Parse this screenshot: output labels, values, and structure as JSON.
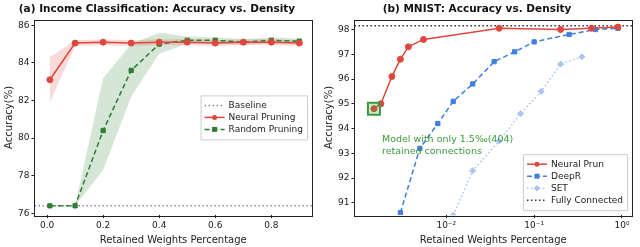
{
  "chart_data": [
    {
      "type": "line",
      "title": "(a) Income Classification: Accuracy vs. Density",
      "x_label": "Retained Weights Percentage",
      "y_label": "Accuracy(%)",
      "xlim": [
        -0.045,
        0.945
      ],
      "xticks": [
        {
          "value": 0,
          "label": "0.0"
        },
        0.2,
        0.4,
        0.6,
        0.8
      ],
      "ylim": [
        75.9,
        86.3
      ],
      "yticks": [
        76,
        78,
        80,
        82,
        84,
        86
      ],
      "grid": false,
      "legend": "center right",
      "series": [
        {
          "name": "Baseline",
          "type": "hline",
          "color": "#888888",
          "line_style": "dotted",
          "values": [
            76.4
          ]
        },
        {
          "name": "Neural Pruning",
          "color": "#e0473c",
          "marker": "circle",
          "line_style": "solid",
          "x": [
            0.01,
            0.1,
            0.2,
            0.3,
            0.4,
            0.5,
            0.6,
            0.7,
            0.8,
            0.9
          ],
          "values": [
            83.1,
            85.05,
            85.1,
            85.05,
            85.1,
            85.1,
            85.05,
            85.1,
            85.1,
            85.05
          ],
          "lower": [
            81.9,
            84.9,
            84.95,
            84.9,
            84.95,
            84.95,
            84.9,
            84.95,
            84.95,
            84.9
          ],
          "upper": [
            84.3,
            85.2,
            85.25,
            85.2,
            85.25,
            85.25,
            85.2,
            85.25,
            85.25,
            85.2
          ]
        },
        {
          "name": "Random Pruning",
          "color": "#2e7d32",
          "marker": "square",
          "line_style": "dashed",
          "x": [
            0.01,
            0.1,
            0.2,
            0.3,
            0.4,
            0.5,
            0.6,
            0.7,
            0.8,
            0.9
          ],
          "values": [
            76.4,
            76.4,
            80.4,
            83.6,
            85.0,
            85.2,
            85.2,
            85.1,
            85.2,
            85.15
          ],
          "lower": [
            76.4,
            76.4,
            78.3,
            82.2,
            84.5,
            85.0,
            85.05,
            84.95,
            85.05,
            85.0
          ],
          "upper": [
            76.4,
            76.4,
            83.2,
            85.0,
            85.6,
            85.4,
            85.35,
            85.25,
            85.35,
            85.3
          ]
        }
      ]
    },
    {
      "type": "line",
      "title": "(b) MNIST: Accuracy vs. Density",
      "x_label": "Retained Weights Percentage",
      "y_label": "Accuracy(%)",
      "log": "x",
      "xlim": [
        0.0009,
        1.3
      ],
      "xticks": [
        {
          "value": 0.01,
          "label": "10⁻²"
        },
        {
          "value": 0.1,
          "label": "10⁻¹"
        },
        {
          "value": 1,
          "label": "10⁰"
        }
      ],
      "ylim": [
        90.5,
        98.4
      ],
      "yticks": [
        91,
        92,
        93,
        94,
        95,
        96,
        97,
        98
      ],
      "grid": false,
      "legend": "lower right",
      "series": [
        {
          "name": "Neural Prun",
          "color": "#e0473c",
          "marker": "circle",
          "line_style": "solid",
          "x": [
            0.0015,
            0.0018,
            0.0024,
            0.003,
            0.0037,
            0.0055,
            0.04,
            0.2,
            0.45,
            0.9
          ],
          "values": [
            94.8,
            95.0,
            96.1,
            96.8,
            97.3,
            97.6,
            98.05,
            98.0,
            98.05,
            98.1
          ]
        },
        {
          "name": "DeepR",
          "color": "#3f7fe0",
          "marker": "square",
          "line_style": "dashed",
          "x": [
            0.003,
            0.005,
            0.008,
            0.012,
            0.02,
            0.035,
            0.06,
            0.1,
            0.25,
            0.5,
            0.9
          ],
          "values": [
            90.6,
            93.2,
            94.2,
            95.1,
            95.8,
            96.7,
            97.1,
            97.5,
            97.8,
            98.0,
            98.05
          ]
        },
        {
          "name": "SET",
          "color": "#a8c4f0",
          "marker": "diamond",
          "line_style": "dotted",
          "x": [
            0.012,
            0.02,
            0.04,
            0.07,
            0.12,
            0.2,
            0.35
          ],
          "values": [
            90.5,
            92.3,
            93.5,
            94.6,
            95.5,
            96.6,
            96.9
          ]
        },
        {
          "name": "Fully Connected",
          "type": "hline",
          "color": "#333333",
          "line_style": "dotted",
          "values": [
            98.15
          ]
        }
      ],
      "annotations": [
        {
          "text": [
            "Model with only 1.5‰(404)",
            "retained connections"
          ],
          "x": 0.0015,
          "y": 94.8,
          "color": "#3c9a3c"
        }
      ]
    }
  ]
}
